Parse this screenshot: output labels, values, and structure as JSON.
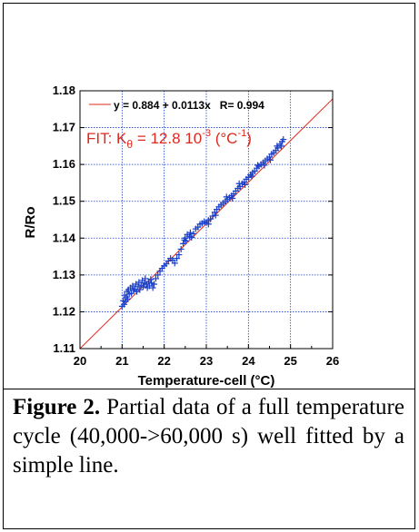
{
  "colors": {
    "data": "#1a3fc8",
    "fit": "#e0281c",
    "grid": "#1a3fc8",
    "text": "#000000"
  },
  "caption": {
    "label": "Figure 2.",
    "text": " Partial data of a full temperature cycle (40,000->60,000 s) well fitted by a simple line."
  },
  "chart_data": {
    "type": "scatter",
    "xlabel": "Temperature-cell (°C)",
    "ylabel": "R/Ro",
    "xlim": [
      20,
      26
    ],
    "ylim": [
      1.11,
      1.18
    ],
    "xticks": [
      "20",
      "21",
      "22",
      "23",
      "24",
      "25",
      "26"
    ],
    "yticks": [
      "1.11",
      "1.12",
      "1.13",
      "1.14",
      "1.15",
      "1.16",
      "1.17",
      "1.18"
    ],
    "grid": true,
    "legend": {
      "fit_eq": "y = 0.884 + 0.0113x   R= 0.994",
      "fit_k_prefix": "FIT: K",
      "fit_k_sub": "θ",
      "fit_k_value": " = 12.8 10",
      "fit_k_exp": "-3",
      "fit_k_unit_open": " (°C",
      "fit_k_unit_exp": "-1",
      "fit_k_unit_close": ")"
    },
    "fit": {
      "intercept": 0.884,
      "slope": 0.0113
    },
    "series": [
      {
        "marker": "+",
        "points": [
          [
            21.0,
            1.1215
          ],
          [
            21.03,
            1.123
          ],
          [
            21.05,
            1.122
          ],
          [
            21.06,
            1.1245
          ],
          [
            21.08,
            1.1228
          ],
          [
            21.1,
            1.124
          ],
          [
            21.12,
            1.1255
          ],
          [
            21.13,
            1.1235
          ],
          [
            21.15,
            1.126
          ],
          [
            21.17,
            1.1248
          ],
          [
            21.2,
            1.1265
          ],
          [
            21.22,
            1.125
          ],
          [
            21.25,
            1.127
          ],
          [
            21.27,
            1.1258
          ],
          [
            21.3,
            1.1262
          ],
          [
            21.33,
            1.1275
          ],
          [
            21.35,
            1.1255
          ],
          [
            21.38,
            1.1268
          ],
          [
            21.4,
            1.128
          ],
          [
            21.42,
            1.126
          ],
          [
            21.45,
            1.1272
          ],
          [
            21.48,
            1.1285
          ],
          [
            21.5,
            1.1268
          ],
          [
            21.53,
            1.1278
          ],
          [
            21.55,
            1.129
          ],
          [
            21.58,
            1.1275
          ],
          [
            21.6,
            1.1265
          ],
          [
            21.63,
            1.1282
          ],
          [
            21.65,
            1.127
          ],
          [
            21.68,
            1.1288
          ],
          [
            21.7,
            1.1278
          ],
          [
            21.73,
            1.1265
          ],
          [
            21.76,
            1.1275
          ],
          [
            21.8,
            1.129
          ],
          [
            21.85,
            1.13
          ],
          [
            21.9,
            1.131
          ],
          [
            21.95,
            1.1318
          ],
          [
            22.0,
            1.1325
          ],
          [
            22.05,
            1.133
          ],
          [
            22.1,
            1.1338
          ],
          [
            22.15,
            1.1345
          ],
          [
            22.2,
            1.134
          ],
          [
            22.25,
            1.1332
          ],
          [
            22.3,
            1.1345
          ],
          [
            22.35,
            1.1355
          ],
          [
            22.4,
            1.137
          ],
          [
            22.45,
            1.1385
          ],
          [
            22.5,
            1.14
          ],
          [
            22.55,
            1.141
          ],
          [
            22.6,
            1.1405
          ],
          [
            22.65,
            1.1402
          ],
          [
            22.7,
            1.1412
          ],
          [
            22.75,
            1.1425
          ],
          [
            22.8,
            1.143
          ],
          [
            22.85,
            1.1438
          ],
          [
            22.9,
            1.144
          ],
          [
            22.95,
            1.1445
          ],
          [
            23.0,
            1.1442
          ],
          [
            23.05,
            1.1448
          ],
          [
            23.1,
            1.1452
          ],
          [
            23.15,
            1.146
          ],
          [
            23.2,
            1.147
          ],
          [
            23.25,
            1.1478
          ],
          [
            23.3,
            1.1485
          ],
          [
            23.35,
            1.149
          ],
          [
            23.4,
            1.1495
          ],
          [
            23.45,
            1.15
          ],
          [
            23.5,
            1.1505
          ],
          [
            23.55,
            1.151
          ],
          [
            23.6,
            1.1515
          ],
          [
            23.65,
            1.152
          ],
          [
            23.7,
            1.1528
          ],
          [
            23.75,
            1.1535
          ],
          [
            23.8,
            1.154
          ],
          [
            23.85,
            1.1548
          ],
          [
            23.9,
            1.1552
          ],
          [
            23.95,
            1.156
          ],
          [
            24.0,
            1.1565
          ],
          [
            24.05,
            1.1572
          ],
          [
            24.1,
            1.1578
          ],
          [
            24.15,
            1.1582
          ],
          [
            24.2,
            1.159
          ],
          [
            24.25,
            1.1595
          ],
          [
            24.3,
            1.16
          ],
          [
            24.35,
            1.1605
          ],
          [
            24.4,
            1.161
          ],
          [
            24.45,
            1.1615
          ],
          [
            24.5,
            1.162
          ],
          [
            24.55,
            1.1628
          ],
          [
            24.6,
            1.1632
          ],
          [
            24.65,
            1.1638
          ],
          [
            24.7,
            1.1645
          ],
          [
            24.75,
            1.1655
          ],
          [
            24.8,
            1.1662
          ],
          [
            24.83,
            1.1668
          ],
          [
            22.48,
            1.1395
          ],
          [
            22.52,
            1.1392
          ],
          [
            22.62,
            1.1415
          ],
          [
            23.05,
            1.1438
          ],
          [
            23.22,
            1.1462
          ],
          [
            23.48,
            1.1512
          ],
          [
            23.62,
            1.1508
          ],
          [
            23.78,
            1.1548
          ],
          [
            23.92,
            1.1545
          ],
          [
            24.08,
            1.1568
          ],
          [
            24.22,
            1.1598
          ],
          [
            24.38,
            1.1598
          ],
          [
            24.52,
            1.1612
          ],
          [
            24.68,
            1.165
          ],
          [
            24.78,
            1.165
          ]
        ]
      }
    ]
  }
}
